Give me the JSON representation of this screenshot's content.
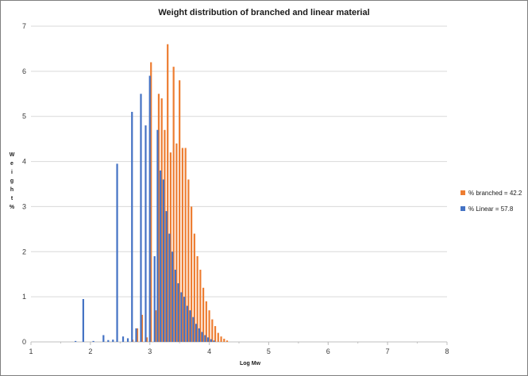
{
  "chart_data": {
    "type": "bar",
    "title": "Weight distribution of branched and linear material",
    "xlabel": "Log Mw",
    "ylabel": "Weight %",
    "xlim": [
      1,
      8
    ],
    "ylim": [
      0,
      7
    ],
    "xticks": [
      "1",
      "2",
      "3",
      "4",
      "5",
      "6",
      "7",
      "8"
    ],
    "yticks": [
      "0",
      "1",
      "2",
      "3",
      "4",
      "5",
      "6",
      "7"
    ],
    "grid": "horizontal",
    "legend_position": "right",
    "series": [
      {
        "name": "% branched = 42.2",
        "color": "#ED7D31",
        "x": [
          2.71,
          2.79,
          2.87,
          2.95,
          3.02,
          3.1,
          3.15,
          3.2,
          3.25,
          3.3,
          3.35,
          3.4,
          3.45,
          3.5,
          3.55,
          3.6,
          3.65,
          3.7,
          3.75,
          3.8,
          3.85,
          3.9,
          3.95,
          4.0,
          4.05,
          4.1,
          4.15,
          4.2,
          4.25,
          4.3
        ],
        "values": [
          0.05,
          0.3,
          0.6,
          0.1,
          6.2,
          0.7,
          5.5,
          5.4,
          4.7,
          6.6,
          4.2,
          6.1,
          4.4,
          5.8,
          4.3,
          4.3,
          3.6,
          3.0,
          2.4,
          1.9,
          1.6,
          1.2,
          0.9,
          0.7,
          0.5,
          0.35,
          0.2,
          0.12,
          0.07,
          0.03
        ]
      },
      {
        "name": "% Linear = 57.8",
        "color": "#4472C4",
        "x": [
          1.75,
          1.88,
          2.05,
          2.22,
          2.3,
          2.38,
          2.45,
          2.55,
          2.63,
          2.7,
          2.77,
          2.85,
          2.93,
          3.0,
          3.08,
          3.13,
          3.18,
          3.23,
          3.28,
          3.33,
          3.38,
          3.43,
          3.48,
          3.53,
          3.58,
          3.63,
          3.68,
          3.73,
          3.78,
          3.83,
          3.88,
          3.93,
          3.98,
          4.03,
          4.08
        ],
        "values": [
          0.02,
          0.95,
          0.02,
          0.15,
          0.04,
          0.05,
          3.95,
          0.12,
          0.08,
          5.1,
          0.3,
          5.5,
          4.8,
          5.9,
          1.9,
          4.7,
          3.8,
          3.6,
          2.9,
          2.4,
          2.0,
          1.6,
          1.3,
          1.1,
          1.0,
          0.8,
          0.7,
          0.55,
          0.4,
          0.3,
          0.22,
          0.15,
          0.1,
          0.06,
          0.03
        ]
      }
    ]
  }
}
